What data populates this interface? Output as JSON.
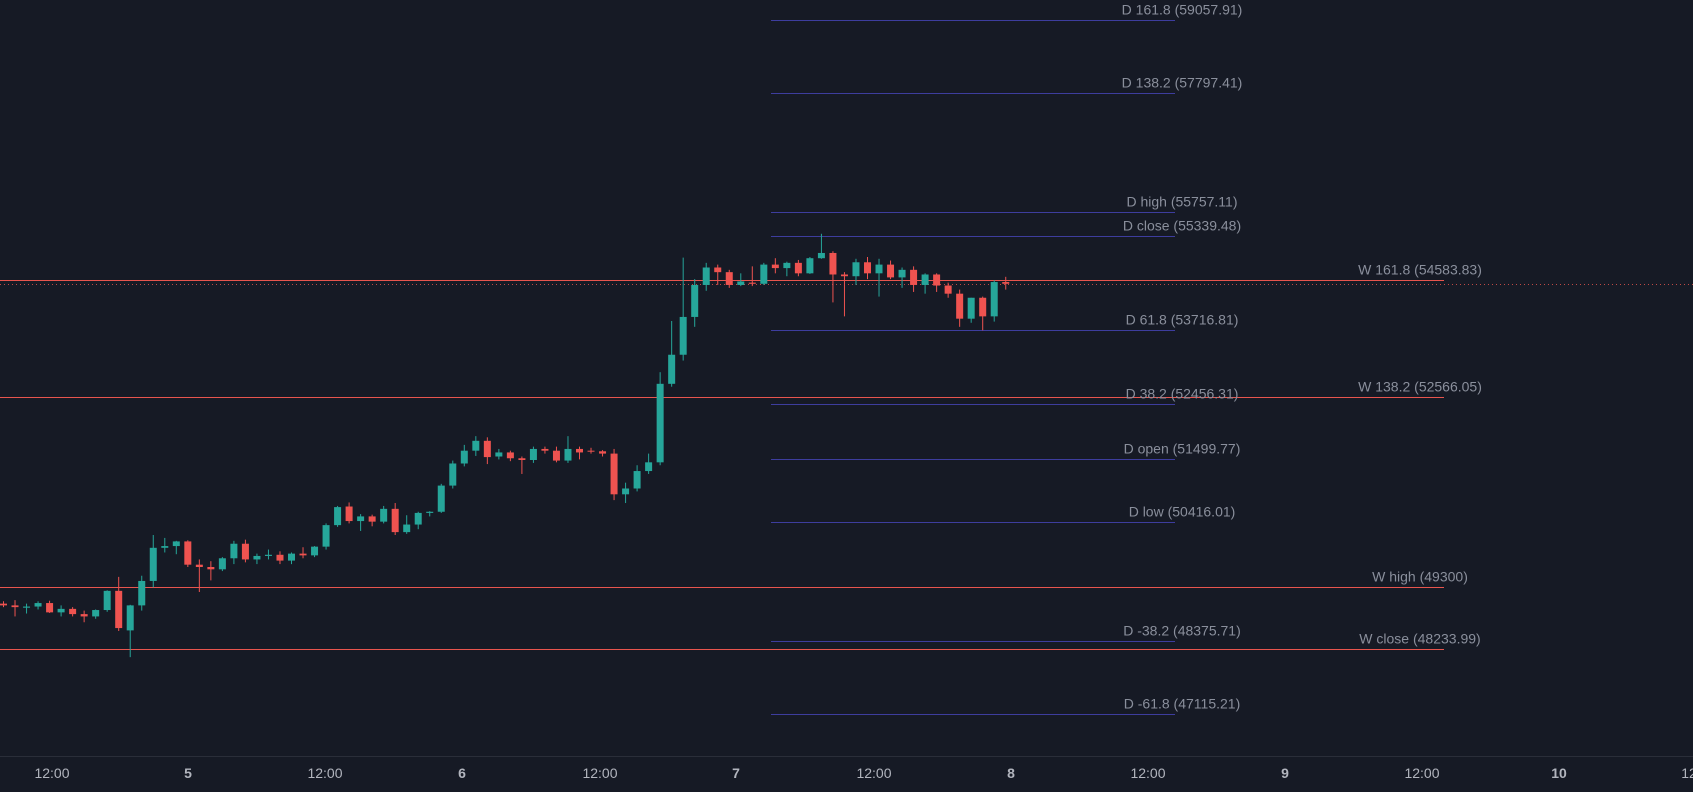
{
  "colors": {
    "background": "#161a25",
    "up": "#26a69a",
    "down": "#ef5350",
    "daily_line": "#3d3d9e",
    "weekly_line": "#e8554e",
    "label": "#8a8f9c",
    "axis_text": "#b2b5be"
  },
  "time_axis": {
    "labels": [
      "12:00",
      "5",
      "12:00",
      "6",
      "12:00",
      "7",
      "12:00",
      "8",
      "12:00",
      "9",
      "12:00",
      "10",
      "12"
    ]
  },
  "chart_data": {
    "type": "candlestick",
    "title": "",
    "y_range": [
      46400,
      59400
    ],
    "interval_hours": 1,
    "candles": [
      {
        "o": 49020,
        "h": 49060,
        "l": 48960,
        "c": 48990
      },
      {
        "o": 48990,
        "h": 49080,
        "l": 48800,
        "c": 48960
      },
      {
        "o": 48950,
        "h": 49020,
        "l": 48850,
        "c": 48970
      },
      {
        "o": 48970,
        "h": 49060,
        "l": 48920,
        "c": 49030
      },
      {
        "o": 49030,
        "h": 49070,
        "l": 48860,
        "c": 48870
      },
      {
        "o": 48870,
        "h": 48990,
        "l": 48800,
        "c": 48930
      },
      {
        "o": 48930,
        "h": 48960,
        "l": 48800,
        "c": 48840
      },
      {
        "o": 48840,
        "h": 48900,
        "l": 48700,
        "c": 48800
      },
      {
        "o": 48800,
        "h": 48920,
        "l": 48760,
        "c": 48910
      },
      {
        "o": 48910,
        "h": 49250,
        "l": 48880,
        "c": 49240
      },
      {
        "o": 49240,
        "h": 49480,
        "l": 48550,
        "c": 48600
      },
      {
        "o": 48560,
        "h": 49000,
        "l": 48100,
        "c": 48990
      },
      {
        "o": 48990,
        "h": 49500,
        "l": 48900,
        "c": 49410
      },
      {
        "o": 49410,
        "h": 50200,
        "l": 49300,
        "c": 49980
      },
      {
        "o": 49980,
        "h": 50150,
        "l": 49900,
        "c": 50010
      },
      {
        "o": 50010,
        "h": 50100,
        "l": 49870,
        "c": 50090
      },
      {
        "o": 50090,
        "h": 50110,
        "l": 49650,
        "c": 49690
      },
      {
        "o": 49690,
        "h": 49780,
        "l": 49220,
        "c": 49650
      },
      {
        "o": 49650,
        "h": 49750,
        "l": 49420,
        "c": 49610
      },
      {
        "o": 49610,
        "h": 49820,
        "l": 49580,
        "c": 49800
      },
      {
        "o": 49800,
        "h": 50100,
        "l": 49700,
        "c": 50050
      },
      {
        "o": 50050,
        "h": 50120,
        "l": 49730,
        "c": 49780
      },
      {
        "o": 49780,
        "h": 49880,
        "l": 49700,
        "c": 49840
      },
      {
        "o": 49840,
        "h": 49950,
        "l": 49780,
        "c": 49860
      },
      {
        "o": 49860,
        "h": 49920,
        "l": 49700,
        "c": 49760
      },
      {
        "o": 49760,
        "h": 49900,
        "l": 49700,
        "c": 49880
      },
      {
        "o": 49880,
        "h": 49990,
        "l": 49800,
        "c": 49850
      },
      {
        "o": 49850,
        "h": 50010,
        "l": 49820,
        "c": 50000
      },
      {
        "o": 50000,
        "h": 50400,
        "l": 49950,
        "c": 50370
      },
      {
        "o": 50370,
        "h": 50700,
        "l": 50340,
        "c": 50680
      },
      {
        "o": 50690,
        "h": 50760,
        "l": 50400,
        "c": 50440
      },
      {
        "o": 50440,
        "h": 50560,
        "l": 50270,
        "c": 50520
      },
      {
        "o": 50520,
        "h": 50550,
        "l": 50350,
        "c": 50430
      },
      {
        "o": 50430,
        "h": 50700,
        "l": 50400,
        "c": 50650
      },
      {
        "o": 50650,
        "h": 50750,
        "l": 50200,
        "c": 50250
      },
      {
        "o": 50250,
        "h": 50540,
        "l": 50220,
        "c": 50380
      },
      {
        "o": 50380,
        "h": 50600,
        "l": 50300,
        "c": 50580
      },
      {
        "o": 50580,
        "h": 50610,
        "l": 50520,
        "c": 50600
      },
      {
        "o": 50600,
        "h": 51080,
        "l": 50580,
        "c": 51050
      },
      {
        "o": 51050,
        "h": 51480,
        "l": 51000,
        "c": 51430
      },
      {
        "o": 51430,
        "h": 51750,
        "l": 51380,
        "c": 51650
      },
      {
        "o": 51650,
        "h": 51900,
        "l": 51560,
        "c": 51820
      },
      {
        "o": 51820,
        "h": 51880,
        "l": 51420,
        "c": 51540
      },
      {
        "o": 51550,
        "h": 51680,
        "l": 51500,
        "c": 51620
      },
      {
        "o": 51620,
        "h": 51650,
        "l": 51470,
        "c": 51520
      },
      {
        "o": 51520,
        "h": 51550,
        "l": 51250,
        "c": 51490
      },
      {
        "o": 51490,
        "h": 51720,
        "l": 51440,
        "c": 51680
      },
      {
        "o": 51680,
        "h": 51720,
        "l": 51600,
        "c": 51650
      },
      {
        "o": 51650,
        "h": 51720,
        "l": 51450,
        "c": 51480
      },
      {
        "o": 51480,
        "h": 51900,
        "l": 51440,
        "c": 51680
      },
      {
        "o": 51680,
        "h": 51720,
        "l": 51500,
        "c": 51620
      },
      {
        "o": 51650,
        "h": 51700,
        "l": 51600,
        "c": 51640
      },
      {
        "o": 51640,
        "h": 51660,
        "l": 51550,
        "c": 51600
      },
      {
        "o": 51600,
        "h": 51680,
        "l": 50800,
        "c": 50900
      },
      {
        "o": 50900,
        "h": 51100,
        "l": 50750,
        "c": 51000
      },
      {
        "o": 51000,
        "h": 51400,
        "l": 50950,
        "c": 51300
      },
      {
        "o": 51300,
        "h": 51600,
        "l": 51250,
        "c": 51450
      },
      {
        "o": 51450,
        "h": 53000,
        "l": 51400,
        "c": 52800
      },
      {
        "o": 52800,
        "h": 53880,
        "l": 52750,
        "c": 53300
      },
      {
        "o": 53300,
        "h": 54970,
        "l": 53200,
        "c": 53950
      },
      {
        "o": 53950,
        "h": 54600,
        "l": 53780,
        "c": 54500
      },
      {
        "o": 54500,
        "h": 54880,
        "l": 54400,
        "c": 54800
      },
      {
        "o": 54800,
        "h": 54850,
        "l": 54500,
        "c": 54720
      },
      {
        "o": 54720,
        "h": 54760,
        "l": 54450,
        "c": 54500
      },
      {
        "o": 54500,
        "h": 54700,
        "l": 54480,
        "c": 54560
      },
      {
        "o": 54540,
        "h": 54820,
        "l": 54480,
        "c": 54520
      },
      {
        "o": 54520,
        "h": 54880,
        "l": 54500,
        "c": 54850
      },
      {
        "o": 54850,
        "h": 54960,
        "l": 54700,
        "c": 54790
      },
      {
        "o": 54790,
        "h": 54900,
        "l": 54650,
        "c": 54880
      },
      {
        "o": 54880,
        "h": 54930,
        "l": 54650,
        "c": 54700
      },
      {
        "o": 54700,
        "h": 54980,
        "l": 54690,
        "c": 54960
      },
      {
        "o": 54960,
        "h": 55380,
        "l": 54950,
        "c": 55050
      },
      {
        "o": 55050,
        "h": 55080,
        "l": 54200,
        "c": 54680
      },
      {
        "o": 54680,
        "h": 54720,
        "l": 53960,
        "c": 54650
      },
      {
        "o": 54650,
        "h": 54950,
        "l": 54500,
        "c": 54890
      },
      {
        "o": 54890,
        "h": 54980,
        "l": 54600,
        "c": 54700
      },
      {
        "o": 54700,
        "h": 54950,
        "l": 54300,
        "c": 54850
      },
      {
        "o": 54850,
        "h": 54920,
        "l": 54600,
        "c": 54630
      },
      {
        "o": 54630,
        "h": 54800,
        "l": 54450,
        "c": 54760
      },
      {
        "o": 54760,
        "h": 54820,
        "l": 54380,
        "c": 54500
      },
      {
        "o": 54500,
        "h": 54700,
        "l": 54350,
        "c": 54680
      },
      {
        "o": 54680,
        "h": 54700,
        "l": 54380,
        "c": 54490
      },
      {
        "o": 54490,
        "h": 54540,
        "l": 54280,
        "c": 54350
      },
      {
        "o": 54350,
        "h": 54420,
        "l": 53780,
        "c": 53920
      },
      {
        "o": 53920,
        "h": 54280,
        "l": 53850,
        "c": 54280
      },
      {
        "o": 54280,
        "h": 54300,
        "l": 53720,
        "c": 53960
      },
      {
        "o": 53960,
        "h": 54580,
        "l": 53870,
        "c": 54550
      },
      {
        "o": 54550,
        "h": 54640,
        "l": 54420,
        "c": 54520
      }
    ],
    "levels": [
      {
        "name": "D 161.8",
        "value": 59057.91,
        "label": "D 161.8 (59057.91)",
        "kind": "daily"
      },
      {
        "name": "D 138.2",
        "value": 57797.41,
        "label": "D 138.2 (57797.41)",
        "kind": "daily"
      },
      {
        "name": "D high",
        "value": 55757.11,
        "label": "D high (55757.11)",
        "kind": "daily"
      },
      {
        "name": "D close",
        "value": 55339.48,
        "label": "D close (55339.48)",
        "kind": "daily"
      },
      {
        "name": "D 61.8",
        "value": 53716.81,
        "label": "D 61.8 (53716.81)",
        "kind": "daily"
      },
      {
        "name": "D 38.2",
        "value": 52456.31,
        "label": "D 38.2 (52456.31)",
        "kind": "daily"
      },
      {
        "name": "D open",
        "value": 51499.77,
        "label": "D open (51499.77)",
        "kind": "daily"
      },
      {
        "name": "D low",
        "value": 50416.01,
        "label": "D low (50416.01)",
        "kind": "daily"
      },
      {
        "name": "D -38.2",
        "value": 48375.71,
        "label": "D -38.2 (48375.71)",
        "kind": "daily"
      },
      {
        "name": "D -61.8",
        "value": 47115.21,
        "label": "D -61.8 (47115.21)",
        "kind": "daily"
      },
      {
        "name": "W 161.8",
        "value": 54583.83,
        "label": "W 161.8 (54583.83)",
        "kind": "weekly"
      },
      {
        "name": "W 138.2",
        "value": 52566.05,
        "label": "W 138.2 (52566.05)",
        "kind": "weekly"
      },
      {
        "name": "W high",
        "value": 49300,
        "label": "W high (49300)",
        "kind": "weekly"
      },
      {
        "name": "W close",
        "value": 48233.99,
        "label": "W close (48233.99)",
        "kind": "weekly"
      }
    ]
  }
}
